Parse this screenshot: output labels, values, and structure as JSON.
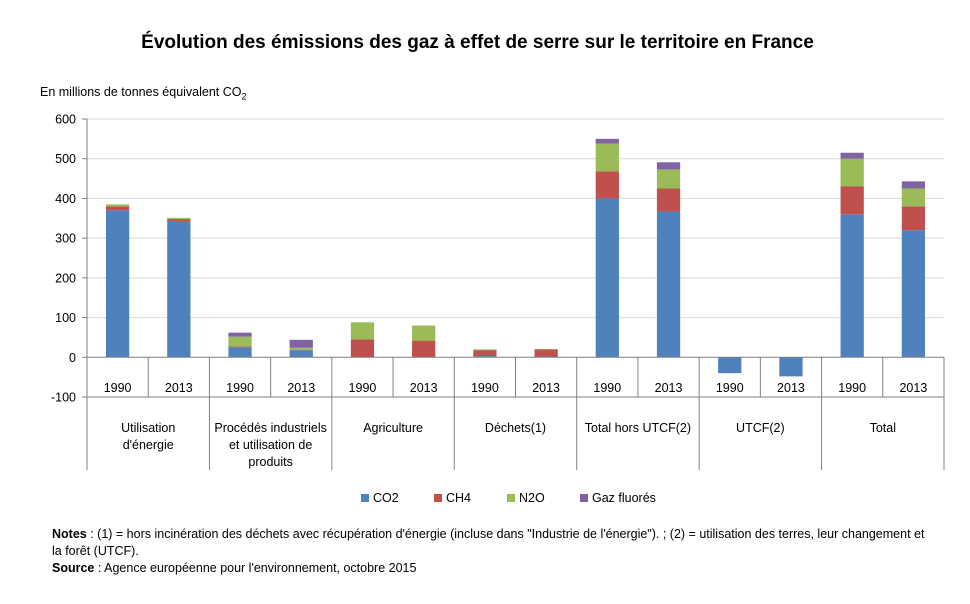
{
  "title": "Évolution des émissions des gaz à effet de serre sur le territoire en France",
  "y_unit_label": {
    "prefix": "En millions de tonnes équivalent CO",
    "subscript": "2"
  },
  "notes": {
    "notes_label": "Notes",
    "notes_text": " : (1) = hors incinération des déchets avec récupération d'énergie (incluse dans \"Industrie de l'énergie\"). ; (2) = utilisation des terres, leur changement et la forêt (UTCF).",
    "source_label": "Source",
    "source_text": " : Agence européenne pour l'environnement, octobre 2015"
  },
  "chart_data": {
    "type": "bar",
    "stacked": true,
    "ylim": [
      -100,
      600
    ],
    "yticks": [
      -100,
      0,
      100,
      200,
      300,
      400,
      500,
      600
    ],
    "grid": true,
    "legend_position": "bottom",
    "groups": [
      {
        "label": "Utilisation d'énergie",
        "years": [
          "1990",
          "2013"
        ]
      },
      {
        "label": "Procédés industriels et utilisation de produits",
        "years": [
          "1990",
          "2013"
        ]
      },
      {
        "label": "Agriculture",
        "years": [
          "1990",
          "2013"
        ]
      },
      {
        "label": "Déchets(1)",
        "years": [
          "1990",
          "2013"
        ]
      },
      {
        "label": "Total hors UTCF(2)",
        "years": [
          "1990",
          "2013"
        ]
      },
      {
        "label": "UTCF(2)",
        "years": [
          "1990",
          "2013"
        ]
      },
      {
        "label": "Total",
        "years": [
          "1990",
          "2013"
        ]
      }
    ],
    "categories": [
      "1990",
      "2013",
      "1990",
      "2013",
      "1990",
      "2013",
      "1990",
      "2013",
      "1990",
      "2013",
      "1990",
      "2013",
      "1990",
      "2013"
    ],
    "series": [
      {
        "name": "CO2",
        "color": "#4F81BD",
        "values": [
          370,
          343,
          25,
          18,
          0,
          0,
          3,
          2,
          400,
          367,
          -40,
          -48,
          360,
          320
        ]
      },
      {
        "name": "CH4",
        "color": "#C0504D",
        "values": [
          10,
          5,
          2,
          1,
          45,
          42,
          15,
          18,
          68,
          58,
          0,
          0,
          70,
          60
        ]
      },
      {
        "name": "N2O",
        "color": "#9BBB59",
        "values": [
          5,
          3,
          25,
          5,
          43,
          38,
          2,
          1,
          70,
          48,
          0,
          0,
          70,
          45
        ]
      },
      {
        "name": "Gaz fluorés",
        "color": "#8064A2",
        "values": [
          0,
          0,
          10,
          20,
          0,
          0,
          0,
          0,
          12,
          18,
          0,
          0,
          15,
          18
        ]
      }
    ]
  }
}
